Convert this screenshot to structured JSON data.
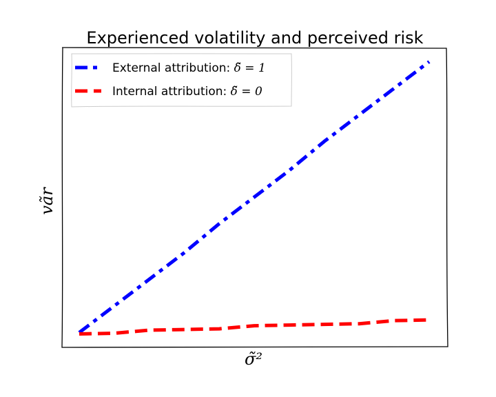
{
  "chart_data": {
    "type": "line",
    "title": "Experienced volatility and perceived risk",
    "xlabel": "σ̃²",
    "ylabel": "vãr",
    "xlim": [
      0,
      1
    ],
    "ylim": [
      0,
      1
    ],
    "grid": false,
    "legend_position": "top-left",
    "x_ticks_shown": false,
    "y_ticks_shown": false,
    "series": [
      {
        "name": "External attribution: δ̃ = 1",
        "legend_prefix": "External attribution: ",
        "legend_math": "δ̃ = 1",
        "color": "#0000ff",
        "line_style": "dashdot",
        "x": [
          0,
          0.1,
          0.2,
          0.3,
          0.4,
          0.5,
          0.6,
          0.7,
          0.8,
          0.9,
          1
        ],
        "values": [
          0,
          0.1,
          0.2,
          0.3,
          0.4,
          0.5,
          0.6,
          0.7,
          0.8,
          0.9,
          1
        ]
      },
      {
        "name": "Internal attribution: δ̃ = 0",
        "legend_prefix": "Internal attribution: ",
        "legend_math": "δ̃ = 0",
        "color": "#ff0000",
        "line_style": "dashed",
        "x": [
          0,
          0.1,
          0.2,
          0.3,
          0.4,
          0.5,
          0.6,
          0.7,
          0.8,
          0.9,
          1
        ],
        "values": [
          0,
          0.005,
          0.01,
          0.015,
          0.02,
          0.025,
          0.03,
          0.035,
          0.04,
          0.045,
          0.05
        ]
      }
    ]
  }
}
